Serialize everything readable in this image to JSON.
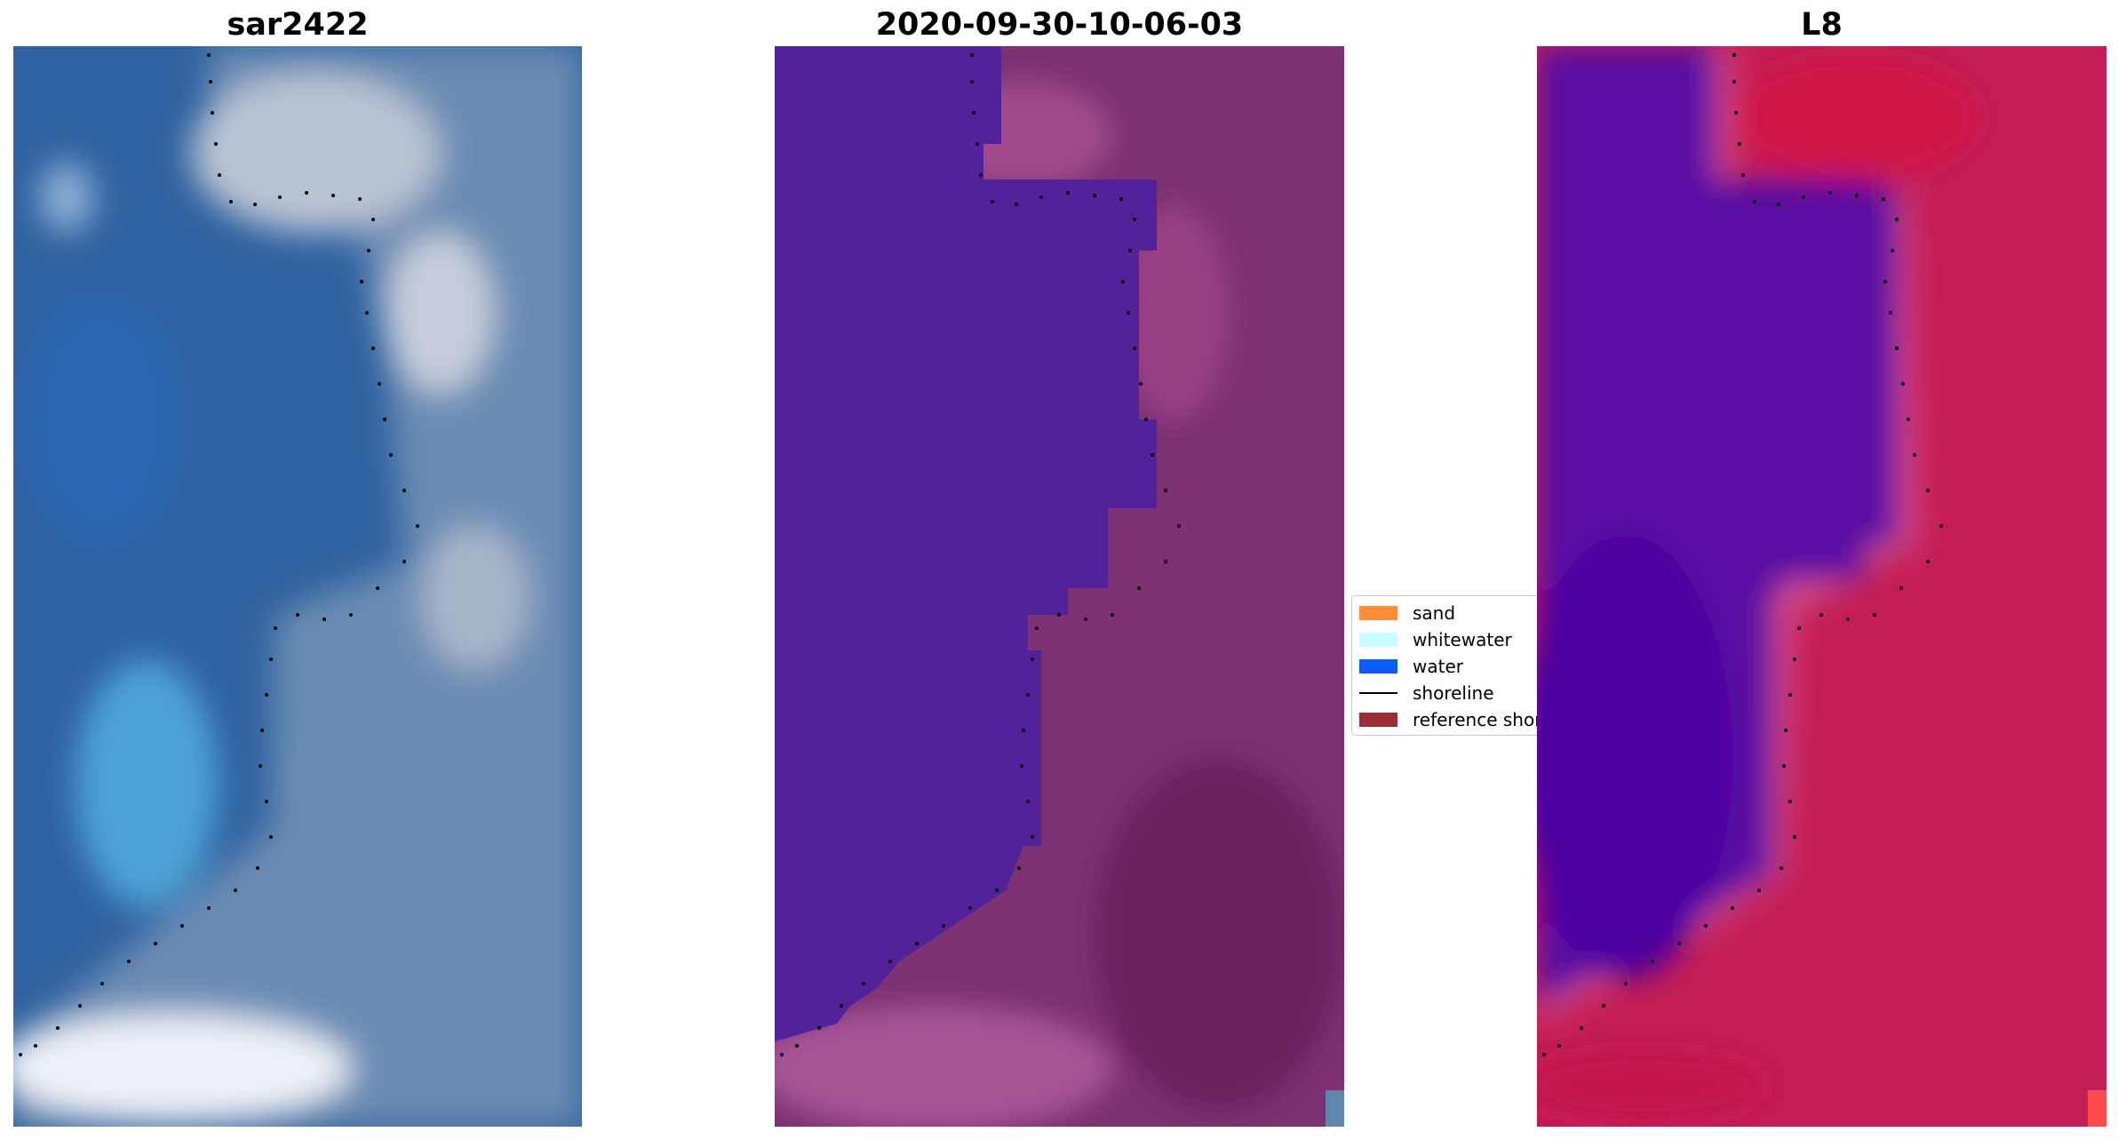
{
  "panels": [
    {
      "title": "sar2422"
    },
    {
      "title": "2020-09-30-10-06-03"
    },
    {
      "title": "L8"
    }
  ],
  "legend": {
    "items": [
      {
        "label": "sand",
        "color": "#ff8c3a",
        "kind": "patch"
      },
      {
        "label": "whitewater",
        "color": "#c9ffff",
        "kind": "patch"
      },
      {
        "label": "water",
        "color": "#0a5df0",
        "kind": "patch"
      },
      {
        "label": "shoreline",
        "color": "#000000",
        "kind": "line"
      },
      {
        "label": "reference shoreline",
        "color": "#9b2d33",
        "kind": "patch"
      }
    ]
  },
  "colors": {
    "rgb_water": "#2f62a0",
    "rgb_land": "#6b8cb3",
    "classified_water": "#52229a",
    "classified_land": "#7c3273",
    "index_water": "#5a0fa3",
    "index_land": "#c31e55"
  }
}
